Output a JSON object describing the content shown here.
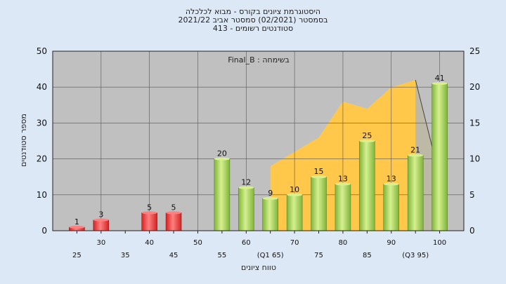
{
  "chart_data": {
    "type": "bar",
    "title_lines": [
      "היסטוגרמת ציונים בקורס - מבוא לכלכלה",
      "בסמסטר  (02/2021)  סמסטר אביב 2021/22",
      "סטודנטים רשומים - 413"
    ],
    "annotation": "בשימחה : Final_B",
    "xlabel": "טווח ציונים",
    "ylabel": "מספר סטודנטים",
    "ylim": [
      0,
      50
    ],
    "y_ticks": [
      0,
      10,
      20,
      30,
      40,
      50
    ],
    "y2lim": [
      0,
      25
    ],
    "y2_ticks": [
      0,
      5,
      10,
      15,
      20,
      25
    ],
    "x_ticks": [
      {
        "x": 25,
        "label": "25",
        "row": 2
      },
      {
        "x": 30,
        "label": "30",
        "row": 1
      },
      {
        "x": 35,
        "label": "35",
        "row": 2
      },
      {
        "x": 40,
        "label": "40",
        "row": 1
      },
      {
        "x": 45,
        "label": "45",
        "row": 2
      },
      {
        "x": 50,
        "label": "50",
        "row": 1
      },
      {
        "x": 55,
        "label": "55",
        "row": 2
      },
      {
        "x": 60,
        "label": "60",
        "row": 1
      },
      {
        "x": 65,
        "label": "(Q1 65)",
        "row": 2
      },
      {
        "x": 70,
        "label": "70",
        "row": 1
      },
      {
        "x": 75,
        "label": "75",
        "row": 2
      },
      {
        "x": 80,
        "label": "80",
        "row": 1
      },
      {
        "x": 85,
        "label": "85",
        "row": 2
      },
      {
        "x": 90,
        "label": "90",
        "row": 1
      },
      {
        "x": 95,
        "label": "(Q3 95)",
        "row": 2
      },
      {
        "x": 100,
        "label": "100",
        "row": 1
      }
    ],
    "bars": [
      {
        "x": 25,
        "value": 1,
        "status": "fail"
      },
      {
        "x": 30,
        "value": 3,
        "status": "fail"
      },
      {
        "x": 40,
        "value": 5,
        "status": "fail"
      },
      {
        "x": 45,
        "value": 5,
        "status": "fail"
      },
      {
        "x": 55,
        "value": 20,
        "status": "pass"
      },
      {
        "x": 60,
        "value": 12,
        "status": "pass"
      },
      {
        "x": 65,
        "value": 9,
        "status": "pass"
      },
      {
        "x": 70,
        "value": 10,
        "status": "pass"
      },
      {
        "x": 75,
        "value": 15,
        "status": "pass"
      },
      {
        "x": 80,
        "value": 13,
        "status": "pass"
      },
      {
        "x": 85,
        "value": 25,
        "status": "pass"
      },
      {
        "x": 90,
        "value": 13,
        "status": "pass"
      },
      {
        "x": 95,
        "value": 21,
        "status": "pass"
      },
      {
        "x": 100,
        "value": 41,
        "status": "pass"
      }
    ],
    "area_secondary_axis": [
      {
        "x": 65,
        "value": 9
      },
      {
        "x": 70,
        "value": 11
      },
      {
        "x": 75,
        "value": 13
      },
      {
        "x": 80,
        "value": 18
      },
      {
        "x": 85,
        "value": 17
      },
      {
        "x": 90,
        "value": 20
      },
      {
        "x": 95,
        "value": 21
      },
      {
        "x": 100,
        "value": 7.5
      }
    ],
    "grid": true,
    "colors": {
      "page_bg": "#dde8f6",
      "plot_bg": "#c0c0c0",
      "grid": "#555555",
      "area": "#ffc84a",
      "area_tail": "#bdb9a6",
      "fail_bar": "#d42222",
      "fail_bar_light": "#ff8080",
      "pass_bar": "#7fb43a",
      "pass_bar_light": "#d6f090"
    }
  }
}
